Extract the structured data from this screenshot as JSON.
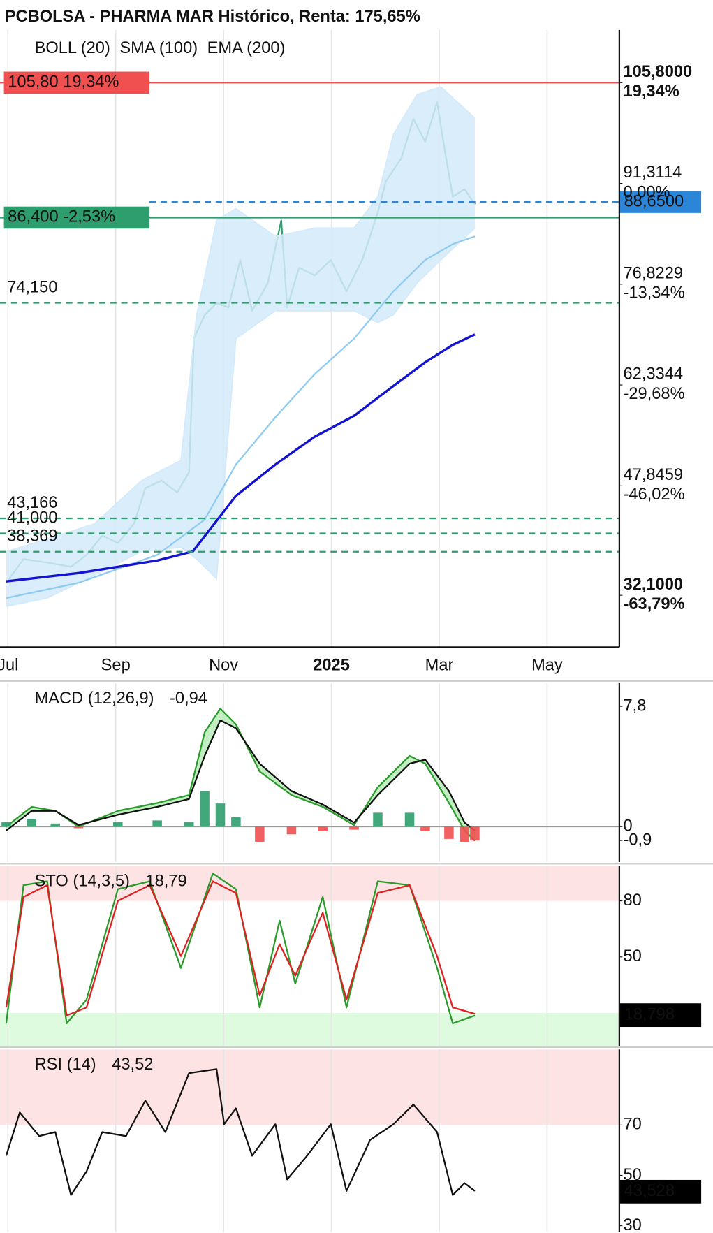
{
  "chart_data": [
    {
      "type": "line",
      "title": "PCBOLSA - PHARMA MAR Histórico, Renta: 175,65%",
      "xlim": [
        -0.146,
        11.34
      ],
      "xticks": [
        {
          "value": 0,
          "label": "Jul"
        },
        {
          "value": 2,
          "label": "Sep"
        },
        {
          "value": 4,
          "label": "Nov"
        },
        {
          "value": 6,
          "label": "2025"
        },
        {
          "value": 8,
          "label": "Mar"
        },
        {
          "value": 10,
          "label": "May"
        }
      ],
      "ylim": [
        24.65,
        113.38
      ],
      "yticks": [
        {
          "value": 105.8,
          "label": "105,8000"
        },
        {
          "value": 91.3114,
          "label": "91,3114"
        },
        {
          "value": 76.8229,
          "label": "76,8229"
        },
        {
          "value": 62.3344,
          "label": "62,3344"
        },
        {
          "value": 47.8459,
          "label": "47,8459"
        },
        {
          "value": 32.1,
          "label": "32,1000"
        }
      ],
      "ytick_percents": [
        "19,34%",
        "0,00%",
        "-13,34%",
        "-29,68%",
        "-46,02%",
        "-63,79%"
      ],
      "levels": [
        {
          "value": 105.8,
          "label": "105,80  19,34%",
          "color": "#f05050",
          "style": "solid",
          "side": "left",
          "box": true
        },
        {
          "value": 86.4,
          "label": "86,400  -2,53%",
          "color": "#2e9e6e",
          "style": "solid",
          "side": "left",
          "box": true
        },
        {
          "value": 88.65,
          "label": "88,6500",
          "color": "#2b86d9",
          "style": "dashed",
          "side": "right",
          "box": true
        },
        {
          "value": 74.15,
          "label": "74,150",
          "color": "#2e9e6e",
          "style": "dashed",
          "side": "left",
          "box": false
        },
        {
          "value": 43.166,
          "label": "43,166",
          "color": "#2e9e6e",
          "style": "dashed",
          "side": "left",
          "box": false
        },
        {
          "value": 41.0,
          "label": "41,000",
          "color": "#2e9e6e",
          "style": "dashed",
          "side": "left",
          "box": false
        },
        {
          "value": 38.369,
          "label": "38,369",
          "color": "#2e9e6e",
          "style": "dashed",
          "side": "left",
          "box": false
        }
      ],
      "series": [
        {
          "color": "#2e9e6e",
          "x": [
            -0.03,
            0.29,
            0.73,
            1.17,
            1.46,
            1.75,
            2.04,
            2.34,
            2.55,
            2.85,
            3.14,
            3.36,
            3.45,
            3.65,
            3.87,
            4.09,
            4.31,
            4.53,
            4.82,
            5.07,
            5.18,
            5.4,
            5.69,
            5.99,
            6.28,
            6.57,
            6.86,
            7.01,
            7.3,
            7.52,
            7.74,
            7.96,
            8.1,
            8.25,
            8.47,
            8.66
          ],
          "values": [
            33.9,
            37.3,
            36.8,
            36.2,
            37.9,
            40.7,
            39.6,
            42.4,
            47.5,
            48.6,
            46.9,
            49.8,
            69.0,
            72.4,
            74.1,
            73.5,
            80.3,
            73.0,
            77.0,
            86.0,
            73.5,
            79.2,
            78.1,
            80.3,
            75.8,
            80.3,
            87.1,
            91.6,
            95.0,
            100.6,
            97.3,
            103.0,
            96.2,
            89.4,
            90.5,
            88.3
          ]
        },
        {
          "name": "BOLL (20)",
          "color": "#d2d2d2",
          "band_color": "#d4eafa",
          "x": [
            -0.03,
            0.73,
            1.61,
            2.48,
            3.21,
            3.5,
            3.87,
            4.23,
            4.96,
            5.69,
            6.42,
            6.86,
            7.15,
            7.59,
            8.03,
            8.66
          ],
          "upper": [
            38.4,
            40.2,
            42.4,
            48.6,
            51.5,
            72.4,
            86.0,
            87.7,
            83.7,
            84.9,
            84.9,
            89.4,
            98.4,
            104.1,
            105.2,
            100.7
          ],
          "lower": [
            30.5,
            31.7,
            35.0,
            38.4,
            39.0,
            37.3,
            34.5,
            69.0,
            73.0,
            73.0,
            73.0,
            71.3,
            72.4,
            77.0,
            80.3,
            84.9
          ]
        },
        {
          "name": "SMA (100)",
          "color": "#8ecbf0",
          "x": [
            -0.03,
            1.31,
            2.77,
            3.65,
            4.23,
            4.96,
            5.69,
            6.42,
            7.15,
            7.74,
            8.25,
            8.66
          ],
          "values": [
            31.7,
            33.9,
            37.9,
            43.0,
            50.9,
            57.7,
            63.9,
            69.0,
            75.8,
            80.3,
            82.6,
            83.7
          ]
        },
        {
          "name": "EMA (200)",
          "color": "#1414d0",
          "x": [
            -0.03,
            1.31,
            2.77,
            3.43,
            4.23,
            4.96,
            5.69,
            6.42,
            7.15,
            7.74,
            8.25,
            8.66
          ],
          "values": [
            34.1,
            35.3,
            37.1,
            38.4,
            46.4,
            50.9,
            54.9,
            57.9,
            62.2,
            65.6,
            68.1,
            69.6
          ]
        }
      ]
    },
    {
      "type": "line",
      "title": "MACD (12,26,9)",
      "reading": "-0,94",
      "ylim": [
        -2.3,
        9.29
      ],
      "yticks": [
        {
          "value": 7.8,
          "label": "7,8"
        },
        0,
        {
          "value": -0.9,
          "label": "-0,9"
        }
      ],
      "ytick_colors": [
        "#e01010",
        "#111111",
        "#1a8a1a"
      ],
      "zero_line": true,
      "series": [
        {
          "color": "#2a9a2a",
          "fill": "#b4eab4",
          "x": [
            -0.03,
            0.44,
            0.88,
            1.31,
            2.04,
            2.77,
            3.36,
            3.65,
            3.94,
            4.23,
            4.67,
            5.26,
            5.84,
            6.42,
            6.86,
            7.45,
            7.74,
            8.18,
            8.47,
            8.66
          ],
          "values": [
            0,
            1.28,
            1.02,
            0,
            1.02,
            1.53,
            2.04,
            6.12,
            7.65,
            6.63,
            3.57,
            2.04,
            1.28,
            0.1,
            2.55,
            4.59,
            4.08,
            1.53,
            -0.26,
            -0.92
          ]
        },
        {
          "color": "#111111",
          "x": [
            -0.03,
            0.44,
            0.88,
            1.31,
            2.04,
            2.77,
            3.36,
            3.65,
            3.94,
            4.23,
            4.67,
            5.26,
            5.84,
            6.42,
            6.86,
            7.45,
            7.74,
            8.18,
            8.47,
            8.66
          ],
          "values": [
            -0.26,
            1.02,
            1.02,
            0.1,
            0.77,
            1.28,
            1.79,
            4.59,
            6.89,
            6.38,
            4.08,
            2.3,
            1.43,
            0.26,
            2.04,
            4.08,
            4.34,
            2.3,
            0.26,
            -0.26
          ]
        },
        {
          "style": "bar",
          "color": "#2e9e6e",
          "negative_color": "#f05050",
          "x": [
            -0.03,
            0.44,
            0.88,
            1.31,
            2.04,
            2.77,
            3.36,
            3.65,
            3.94,
            4.23,
            4.67,
            5.26,
            5.84,
            6.42,
            6.86,
            7.45,
            7.74,
            8.18,
            8.47,
            8.66
          ],
          "values": [
            0.3,
            0.5,
            0.2,
            -0.1,
            0.3,
            0.4,
            0.3,
            2.3,
            1.5,
            0.6,
            -1.0,
            -0.5,
            -0.3,
            -0.2,
            0.9,
            0.9,
            -0.3,
            -0.8,
            -1.0,
            -0.9
          ]
        }
      ]
    },
    {
      "type": "line",
      "title": "STO (14,3,5)",
      "reading": "18,79",
      "ylim": [
        1.7,
        98.7
      ],
      "yticks": [
        80,
        50
      ],
      "ytick_colors": [
        "#e01010",
        "#111111"
      ],
      "zones": [
        {
          "above": 80,
          "color": "#fde3e3"
        },
        {
          "below": 20,
          "color": "#dffbdf"
        }
      ],
      "current": {
        "value": 18.798,
        "label": "18,798"
      },
      "series": [
        {
          "color": "#2a9a2a",
          "x": [
            -0.03,
            0.29,
            0.73,
            1.09,
            1.46,
            2.04,
            2.63,
            3.21,
            3.8,
            4.23,
            4.67,
            5.04,
            5.33,
            5.84,
            6.28,
            6.86,
            7.45,
            7.96,
            8.25,
            8.66
          ],
          "values": [
            14.4,
            88.4,
            90.5,
            14.4,
            27.1,
            86.3,
            90.5,
            44.1,
            94.7,
            86.3,
            22.9,
            69.4,
            35.6,
            82.1,
            22.9,
            90.5,
            88.4,
            44.1,
            14.4,
            18.6
          ]
        },
        {
          "color": "#e02020",
          "x": [
            -0.03,
            0.29,
            0.73,
            1.09,
            1.46,
            2.04,
            2.63,
            3.21,
            3.8,
            4.23,
            4.67,
            5.04,
            5.33,
            5.84,
            6.28,
            6.86,
            7.45,
            7.96,
            8.25,
            8.66
          ],
          "values": [
            22.9,
            82.1,
            88.4,
            18.6,
            22.9,
            80,
            88.4,
            50.4,
            90.5,
            84.2,
            29.3,
            56.8,
            39.9,
            73.7,
            27.1,
            84.2,
            88.4,
            50.4,
            22.9,
            19.5
          ]
        }
      ]
    },
    {
      "type": "line",
      "title": "RSI (14)",
      "reading": "43,52",
      "ylim": [
        27.5,
        100
      ],
      "yticks": [
        70,
        50,
        30
      ],
      "ytick_colors": [
        "#e01010",
        "#111111",
        "#1a8a1a"
      ],
      "zones": [
        {
          "above": 70,
          "color": "#fde3e3"
        }
      ],
      "current": {
        "value": 43.528,
        "label": "43,528"
      },
      "series": [
        {
          "color": "#111111",
          "x": [
            -0.03,
            0.22,
            0.58,
            0.88,
            1.17,
            1.46,
            1.75,
            2.19,
            2.55,
            2.92,
            3.36,
            3.87,
            4.01,
            4.23,
            4.53,
            4.96,
            5.18,
            5.55,
            5.99,
            6.28,
            6.72,
            7.15,
            7.52,
            7.96,
            8.25,
            8.47,
            8.66
          ],
          "values": [
            57.8,
            75,
            65.6,
            67.2,
            42.2,
            51.6,
            67.2,
            65.6,
            79.7,
            67.2,
            90.6,
            92.2,
            70.3,
            76.6,
            57.8,
            70.3,
            48.4,
            57.8,
            70.3,
            43.8,
            64.1,
            70.3,
            78.1,
            67.2,
            42.2,
            46.9,
            43.8
          ]
        }
      ]
    }
  ]
}
